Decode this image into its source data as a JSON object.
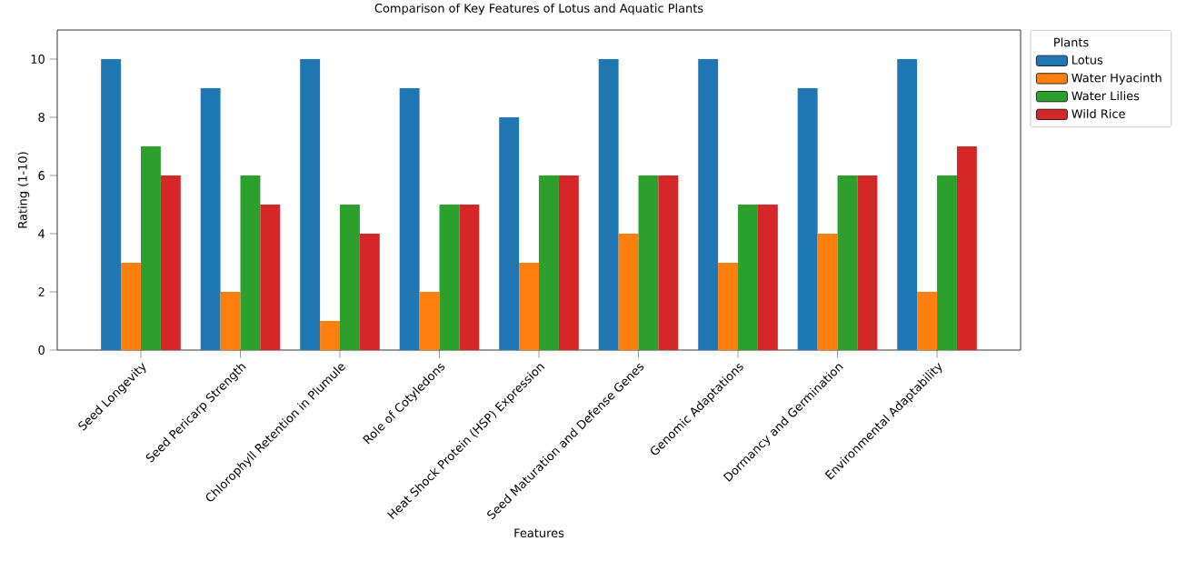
{
  "chart_data": {
    "type": "bar",
    "title": "Comparison of Key Features of Lotus and Aquatic Plants",
    "xlabel": "Features",
    "ylabel": "Rating (1-10)",
    "legend_title": "Plants",
    "categories": [
      "Seed Longevity",
      "Seed Pericarp Strength",
      "Chlorophyll Retention in Plumule",
      "Role of Cotyledons",
      "Heat Shock Protein (HSP) Expression",
      "Seed Maturation and Defense Genes",
      "Genomic Adaptations",
      "Dormancy and Germination",
      "Environmental Adaptability"
    ],
    "series": [
      {
        "name": "Lotus",
        "color": "#1f77b4",
        "values": [
          10,
          9,
          10,
          9,
          8,
          10,
          10,
          9,
          10
        ]
      },
      {
        "name": "Water Hyacinth",
        "color": "#ff7f0e",
        "values": [
          3,
          2,
          1,
          2,
          3,
          4,
          3,
          4,
          2
        ]
      },
      {
        "name": "Water Lilies",
        "color": "#2ca02c",
        "values": [
          7,
          6,
          5,
          5,
          6,
          6,
          5,
          6,
          6
        ]
      },
      {
        "name": "Wild Rice",
        "color": "#d62728",
        "values": [
          6,
          5,
          4,
          5,
          6,
          6,
          5,
          6,
          7
        ]
      }
    ],
    "ylim": [
      0,
      11
    ],
    "yticks": [
      0,
      2,
      4,
      6,
      8,
      10
    ],
    "legend": "right"
  }
}
